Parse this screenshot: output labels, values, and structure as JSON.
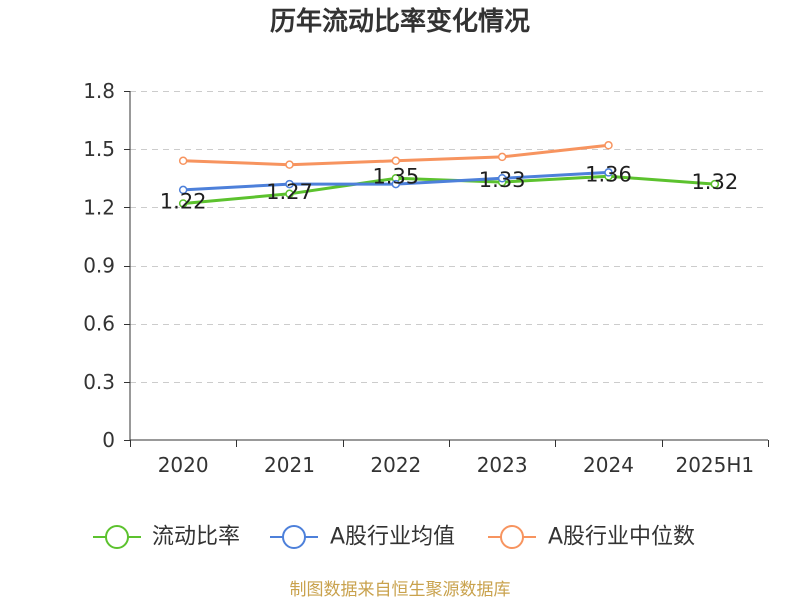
{
  "chart_data": {
    "type": "line",
    "title": "历年流动比率变化情况",
    "categories": [
      "2020",
      "2021",
      "2022",
      "2023",
      "2024",
      "2025H1"
    ],
    "ylim": [
      0,
      1.8
    ],
    "yticks": [
      0,
      0.3,
      0.6,
      0.9,
      1.2,
      1.5,
      1.8
    ],
    "grid": true,
    "legend_position": "bottom",
    "series": [
      {
        "name": "流动比率",
        "color": "#5cc22e",
        "data_labels": true,
        "values": [
          1.22,
          1.27,
          1.35,
          1.33,
          1.36,
          1.32
        ]
      },
      {
        "name": "A股行业均值",
        "color": "#4d80da",
        "data_labels": false,
        "values": [
          1.29,
          1.32,
          1.32,
          1.35,
          1.38,
          null
        ]
      },
      {
        "name": "A股行业中位数",
        "color": "#f7945f",
        "data_labels": false,
        "values": [
          1.44,
          1.42,
          1.44,
          1.46,
          1.52,
          null
        ]
      }
    ]
  },
  "footer": {
    "source": "制图数据来自恒生聚源数据库",
    "color": "#c9a24d"
  },
  "colors": {
    "title": "#333333",
    "axis": "#333333",
    "grid": "#cccccc"
  }
}
